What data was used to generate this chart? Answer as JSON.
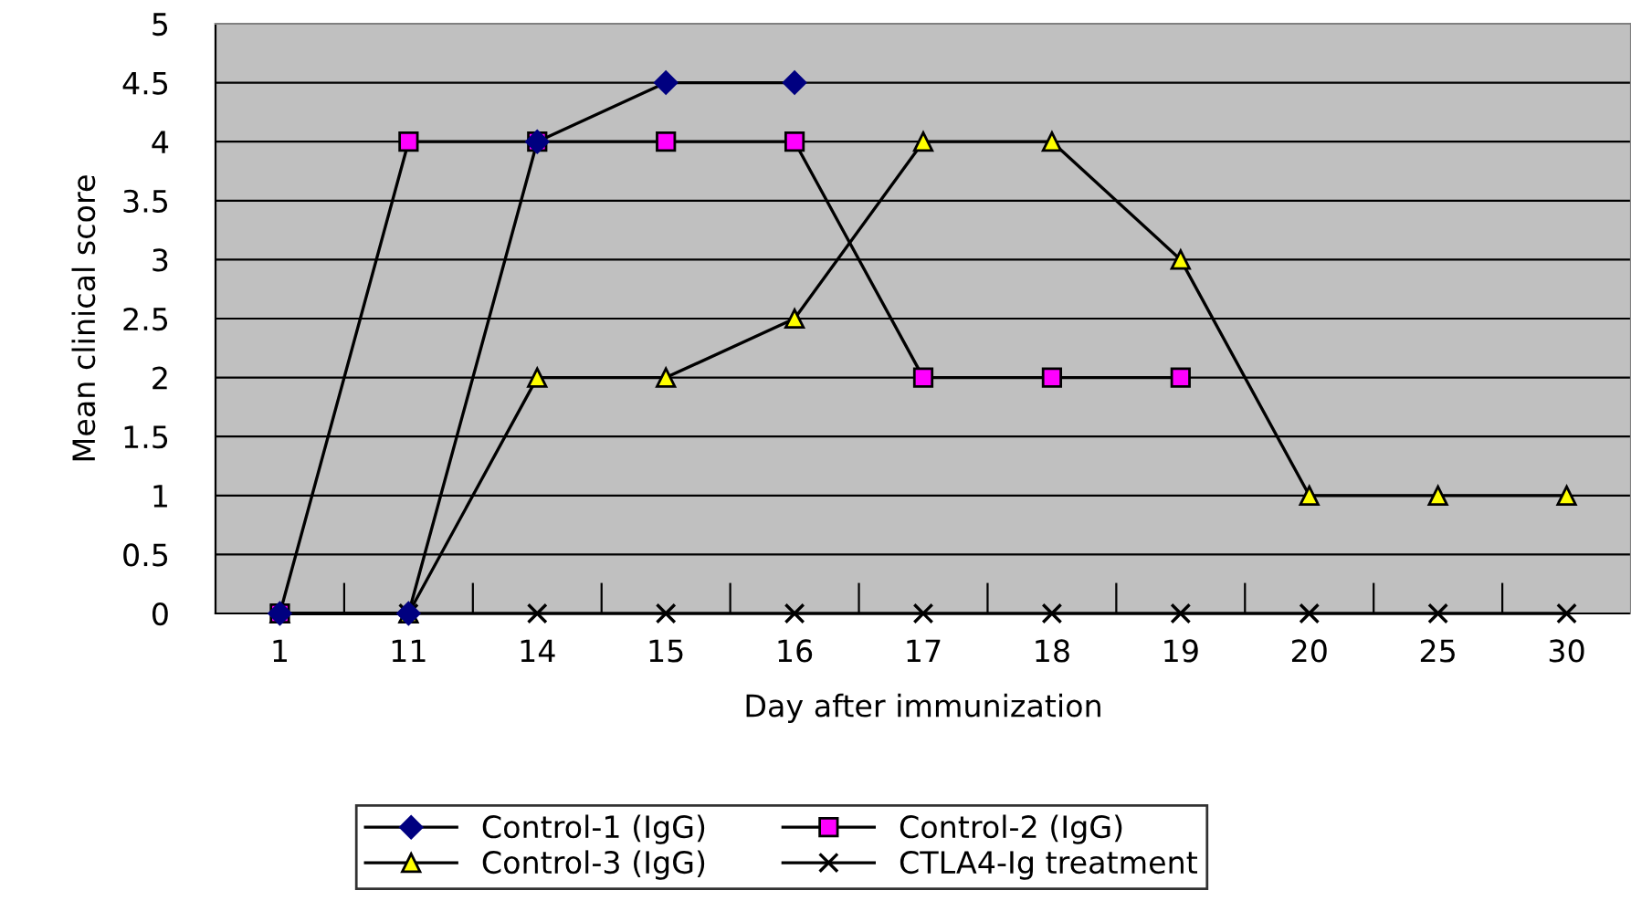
{
  "chart_data": {
    "type": "line",
    "xlabel": "Day after immunization",
    "ylabel": "Mean clinical score",
    "categories": [
      "1",
      "11",
      "14",
      "15",
      "16",
      "17",
      "18",
      "19",
      "20",
      "25",
      "30"
    ],
    "ylim": [
      0,
      5
    ],
    "yticks": [
      0,
      0.5,
      1,
      1.5,
      2,
      2.5,
      3,
      3.5,
      4,
      4.5,
      5
    ],
    "grid": "y",
    "legend": "bottom",
    "line_style": "solid",
    "series": [
      {
        "name": "Control-1 (IgG)",
        "color": "#000080",
        "marker": "diamond",
        "values": [
          0,
          0,
          4,
          4.5,
          4.5,
          null,
          null,
          null,
          null,
          null,
          null
        ]
      },
      {
        "name": "Control-2 (IgG)",
        "color": "#ff00ff",
        "marker": "square",
        "values": [
          0,
          4,
          4,
          4,
          4,
          2,
          2,
          2,
          null,
          null,
          null
        ]
      },
      {
        "name": "Control-3 (IgG)",
        "color": "#ffff00",
        "marker": "triangle",
        "values": [
          0,
          0,
          2,
          2,
          2.5,
          4,
          4,
          3,
          1,
          1,
          1
        ]
      },
      {
        "name": "CTLA4-Ig treatment",
        "color": "#000000",
        "marker": "cross",
        "values": [
          0,
          0,
          0,
          0,
          0,
          0,
          0,
          0,
          0,
          0,
          0
        ]
      }
    ]
  }
}
